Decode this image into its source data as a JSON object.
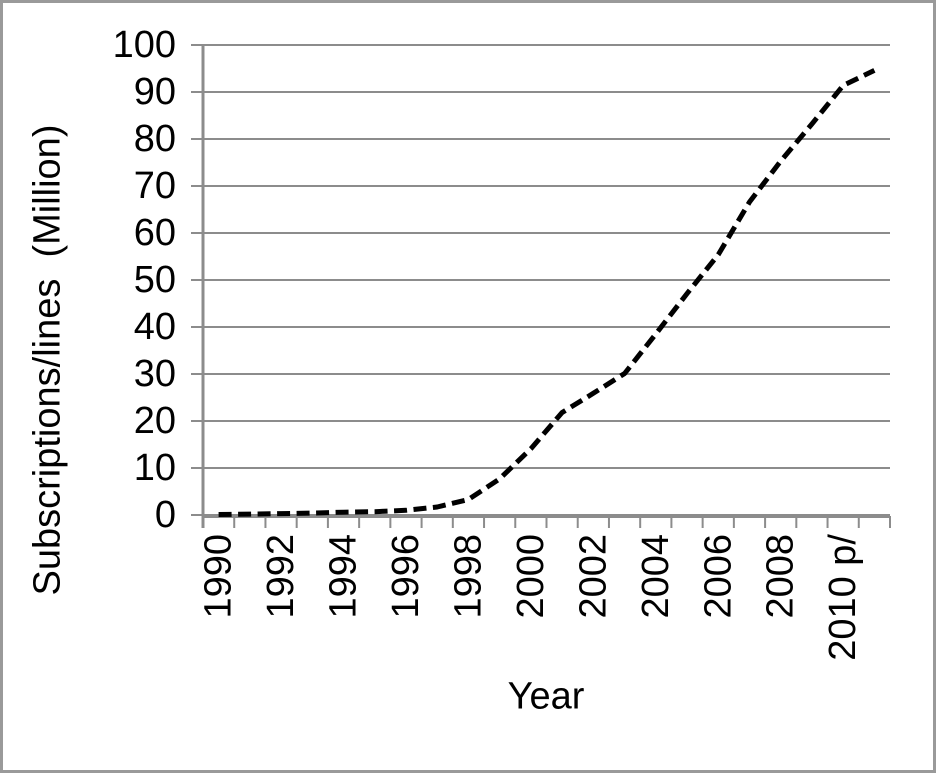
{
  "chart_data": {
    "type": "line",
    "title": "",
    "xlabel": "Year",
    "ylabel": "Subscriptions/lines  (Million)",
    "x": [
      1990,
      1991,
      1992,
      1993,
      1994,
      1995,
      1996,
      1997,
      1998,
      1999,
      2000,
      2001,
      2002,
      2003,
      2004,
      2005,
      2006,
      2007,
      2008,
      2009,
      2010,
      2011
    ],
    "x_tick_labels": [
      "1990",
      "1992",
      "1994",
      "1996",
      "1998",
      "2000",
      "2002",
      "2004",
      "2006",
      "2008",
      "2010 p/"
    ],
    "x_tick_label_every": 2,
    "series": [
      {
        "name": "Subscriptions/lines (Million)",
        "line_style": "dashed",
        "color": "#000000",
        "values": [
          0.1,
          0.2,
          0.3,
          0.4,
          0.6,
          0.7,
          1.0,
          1.7,
          3.3,
          7.7,
          14.1,
          21.8,
          25.9,
          30.1,
          38.5,
          47.1,
          55.4,
          66.6,
          75.3,
          83.2,
          91.4,
          94.6
        ]
      }
    ],
    "ylim": [
      0,
      100
    ],
    "y_ticks": [
      0,
      10,
      20,
      30,
      40,
      50,
      60,
      70,
      80,
      90,
      100
    ],
    "grid": "horizontal-major",
    "legend_position": "none"
  },
  "colors": {
    "axis_gray": "#8c8c8c",
    "series_line": "#000000",
    "background": "#ffffff",
    "text": "#000000",
    "frame_border": "#9a9a9a"
  }
}
